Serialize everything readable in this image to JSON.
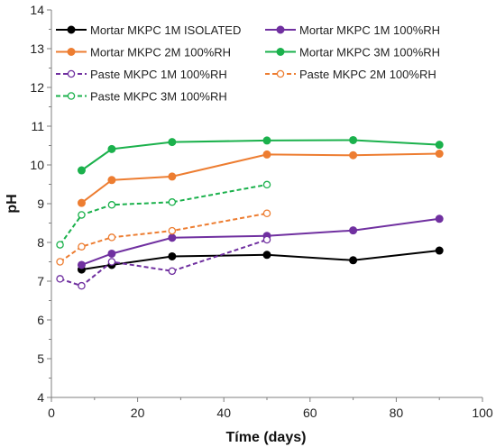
{
  "chart_data": {
    "type": "line",
    "xlabel": "Tíme (days)",
    "ylabel": "pH",
    "xlim": [
      0,
      100
    ],
    "ylim": [
      4,
      14
    ],
    "xticks": [
      "0",
      "20",
      "40",
      "60",
      "80",
      "100"
    ],
    "yticks": [
      "4",
      "5",
      "6",
      "7",
      "8",
      "9",
      "10",
      "11",
      "12",
      "13",
      "14"
    ],
    "grid": false,
    "legend_position": "top",
    "series": [
      {
        "name": "Mortar MKPC 1M ISOLATED",
        "color": "#000000",
        "line": "solid",
        "marker": "filled-circle",
        "x": [
          7,
          14,
          28,
          50,
          70,
          90
        ],
        "y": [
          7.3,
          7.42,
          7.64,
          7.68,
          7.54,
          7.79
        ]
      },
      {
        "name": "Mortar MKPC 1M 100%RH",
        "color": "#7030A0",
        "line": "solid",
        "marker": "filled-circle",
        "x": [
          7,
          14,
          28,
          50,
          70,
          90
        ],
        "y": [
          7.42,
          7.71,
          8.12,
          8.17,
          8.31,
          8.61
        ]
      },
      {
        "name": "Mortar MKPC 2M 100%RH",
        "color": "#ED7D31",
        "line": "solid",
        "marker": "filled-circle",
        "x": [
          7,
          14,
          28,
          50,
          70,
          90
        ],
        "y": [
          9.02,
          9.61,
          9.7,
          10.27,
          10.25,
          10.29
        ]
      },
      {
        "name": "Mortar MKPC 3M 100%RH",
        "color": "#1BB14C",
        "line": "solid",
        "marker": "filled-circle",
        "x": [
          7,
          14,
          28,
          50,
          70,
          90
        ],
        "y": [
          9.86,
          10.41,
          10.59,
          10.63,
          10.64,
          10.52
        ]
      },
      {
        "name": "Paste MKPC 1M 100%RH",
        "color": "#7030A0",
        "line": "dashed",
        "marker": "open-circle",
        "x": [
          2,
          7,
          14,
          28,
          50
        ],
        "y": [
          7.06,
          6.88,
          7.5,
          7.26,
          8.07
        ]
      },
      {
        "name": "Paste MKPC 2M 100%RH",
        "color": "#ED7D31",
        "line": "dashed",
        "marker": "open-circle",
        "x": [
          2,
          7,
          14,
          28,
          50
        ],
        "y": [
          7.5,
          7.89,
          8.13,
          8.3,
          8.75
        ]
      },
      {
        "name": "Paste MKPC 3M 100%RH",
        "color": "#1BB14C",
        "line": "dashed",
        "marker": "open-circle",
        "x": [
          2,
          7,
          14,
          28,
          50
        ],
        "y": [
          7.94,
          8.71,
          8.97,
          9.04,
          9.49
        ]
      }
    ]
  }
}
